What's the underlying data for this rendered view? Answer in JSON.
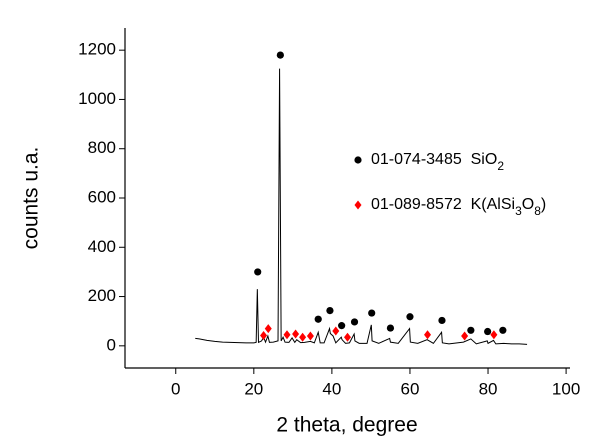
{
  "chart_data": {
    "type": "line",
    "xlabel": "2 theta, degree",
    "ylabel": "counts u.a.",
    "xlim": [
      -13,
      101
    ],
    "xticks": [
      0,
      20,
      40,
      60,
      80,
      100
    ],
    "ylim": [
      -90,
      1290
    ],
    "yticks": [
      0,
      200,
      400,
      600,
      800,
      1000,
      1200
    ],
    "series": [
      {
        "type": "line",
        "color": "#000000",
        "x": [
          5,
          6,
          8,
          10,
          12,
          14,
          16,
          18,
          20,
          20.6,
          20.9,
          21.2,
          22,
          22.5,
          23,
          23.6,
          24,
          25,
          26.2,
          26.6,
          27,
          27.5,
          28,
          29,
          29.8,
          30.5,
          31,
          32,
          33,
          34.5,
          35.5,
          36.5,
          37,
          38,
          39.4,
          39.6,
          40.3,
          41,
          42.4,
          42.6,
          43.5,
          44.5,
          45.7,
          45.9,
          47,
          49,
          50.1,
          50.3,
          52,
          54.8,
          55,
          57,
          59.9,
          60.1,
          62,
          64.4,
          66,
          68.1,
          68.3,
          70,
          73.7,
          75.6,
          77,
          79.8,
          80,
          81.4,
          82,
          84,
          86,
          88,
          90
        ],
        "values": [
          30,
          28,
          22,
          18,
          15,
          14,
          13,
          12,
          12,
          14,
          230,
          14,
          20,
          35,
          15,
          40,
          14,
          15,
          20,
          1125,
          20,
          35,
          15,
          14,
          32,
          14,
          25,
          13,
          14,
          18,
          12,
          55,
          12,
          12,
          70,
          50,
          40,
          12,
          35,
          25,
          10,
          12,
          48,
          20,
          10,
          10,
          85,
          20,
          10,
          30,
          15,
          10,
          70,
          15,
          10,
          25,
          10,
          55,
          12,
          8,
          15,
          28,
          8,
          20,
          10,
          22,
          8,
          10,
          8,
          8,
          6
        ]
      },
      {
        "type": "scatter",
        "name": "01-074-3485  SiO2",
        "color": "#000000",
        "marker": "circle",
        "x": [
          21,
          26.8,
          36.5,
          39.5,
          42.5,
          45.8,
          50.2,
          55,
          60,
          68.2,
          75.6,
          79.9,
          83.8
        ],
        "values": [
          300,
          1180,
          108,
          143,
          82,
          97,
          133,
          72,
          118,
          103,
          63,
          58,
          63
        ]
      },
      {
        "type": "scatter",
        "name": "01-089-8572  K(AlSi3O8)",
        "color": "#ff0000",
        "marker": "diamond",
        "x": [
          22.5,
          23.7,
          28.5,
          30.7,
          32.5,
          34.5,
          41,
          44,
          64.5,
          74,
          81.5
        ],
        "values": [
          42,
          70,
          45,
          48,
          35,
          40,
          60,
          35,
          45,
          40,
          45
        ]
      }
    ]
  }
}
